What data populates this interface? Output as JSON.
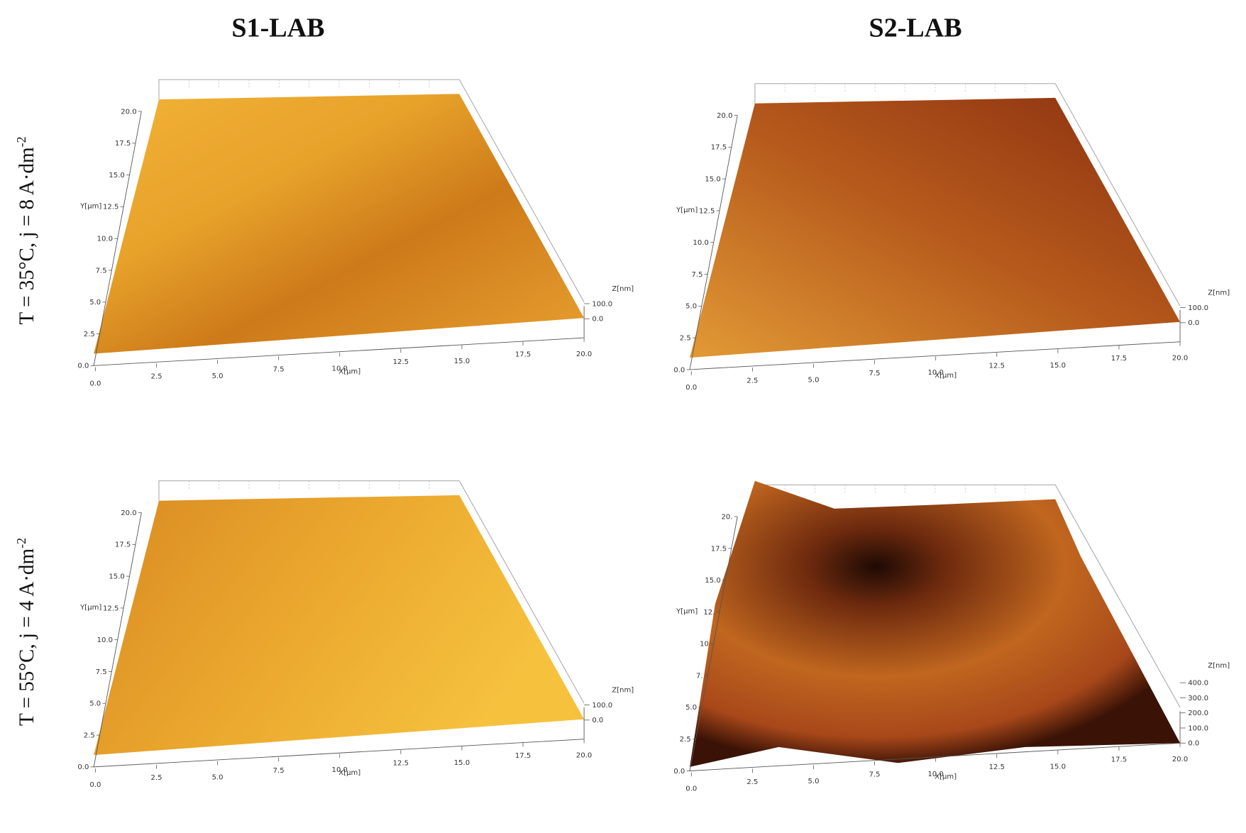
{
  "columns": [
    {
      "title": "S1-LAB"
    },
    {
      "title": "S2-LAB"
    }
  ],
  "rows": [
    {
      "label": "T = 35°C, j = 8 A·dm",
      "exponent": "-2"
    },
    {
      "label": "T = 55°C, j = 4 A·dm",
      "exponent": "-2"
    }
  ],
  "panels": [
    {
      "x_label": "X[µm]",
      "y_label": "Y[µm]",
      "z_label": "Z[nm]",
      "x_ticks": [
        "0.0",
        "2.5",
        "5.0",
        "7.5",
        "10.0",
        "12.5",
        "15.0",
        "17.5",
        "20.0"
      ],
      "y_ticks": [
        "0.0",
        "2.5",
        "5.0",
        "7.5",
        "10.0",
        "12.5",
        "15.0",
        "17.5",
        "20.0"
      ],
      "z_ticks": [
        "0.0",
        "100.0"
      ]
    },
    {
      "x_label": "X[µm]",
      "y_label": "Y[µm]",
      "z_label": "Z[nm]",
      "x_ticks": [
        "0.0",
        "2.5",
        "5.0",
        "7.5",
        "10.0",
        "12.5",
        "15.0",
        "17.5",
        "20.0"
      ],
      "y_ticks": [
        "0.0",
        "2.5",
        "5.0",
        "7.5",
        "10.0",
        "12.5",
        "15.0",
        "17.5",
        "20.0"
      ],
      "z_ticks": [
        "0.0",
        "100.0"
      ]
    },
    {
      "x_label": "X[µm]",
      "y_label": "Y[µm]",
      "z_label": "Z[nm]",
      "x_ticks": [
        "0.0",
        "2.5",
        "5.0",
        "7.5",
        "10.0",
        "12.5",
        "15.0",
        "17.5",
        "20.0"
      ],
      "y_ticks": [
        "0.0",
        "2.5",
        "5.0",
        "7.5",
        "10.0",
        "12.5",
        "15.0",
        "17.5",
        "20.0"
      ],
      "z_ticks": [
        "0.0",
        "100.0"
      ]
    },
    {
      "x_label": "X[µm]",
      "y_label": "Y[µm]",
      "z_label": "Z[nm]",
      "x_ticks": [
        "0.0",
        "2.5",
        "5.0",
        "7.5",
        "10.0",
        "12.5",
        "15.0",
        "17.5",
        "20.0"
      ],
      "y_ticks": [
        "0.0",
        "2.5",
        "5.0",
        "7.",
        "10",
        "12.",
        "15.0",
        "17.5",
        "20."
      ],
      "z_ticks": [
        "0.0",
        "100.0",
        "200.0",
        "300.0",
        "400.0"
      ]
    }
  ]
}
